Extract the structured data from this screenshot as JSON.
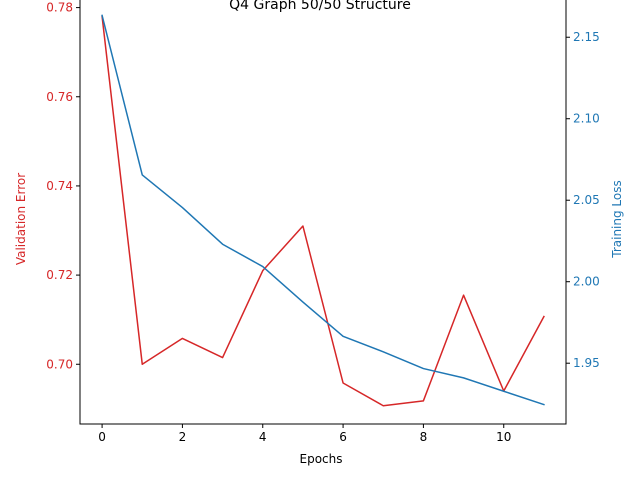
{
  "chart_data": {
    "type": "line",
    "title": "Q4 Graph 50/50 Structure",
    "xlabel": "Epochs",
    "x": [
      0,
      1,
      2,
      3,
      4,
      5,
      6,
      7,
      8,
      9,
      10,
      11
    ],
    "xlim": [
      -0.55,
      11.55
    ],
    "xticks": [
      0,
      2,
      4,
      6,
      8,
      10
    ],
    "axes": {
      "left": {
        "label": "Validation Error",
        "color": "#d62728",
        "ylim": [
          0.6866,
          0.7826
        ],
        "ticks": [
          "0.70",
          "0.72",
          "0.74",
          "0.76",
          "0.78"
        ]
      },
      "right": {
        "label": "Training Loss",
        "color": "#1f77b4",
        "ylim": [
          1.9127,
          2.1753
        ],
        "ticks": [
          "1.95",
          "2.00",
          "2.05",
          "2.10",
          "2.15"
        ]
      }
    },
    "series": [
      {
        "axis": "left",
        "color": "#d62728",
        "values": [
          0.778,
          0.7,
          0.7058,
          0.7015,
          0.721,
          0.731,
          0.6958,
          0.6907,
          0.6918,
          0.7155,
          0.694,
          0.7107
        ]
      },
      {
        "axis": "right",
        "color": "#1f77b4",
        "values": [
          2.1634,
          2.0655,
          2.0455,
          2.023,
          2.0093,
          1.9875,
          1.9665,
          1.957,
          1.9467,
          1.941,
          1.9328,
          1.9246
        ]
      }
    ],
    "grid": false,
    "legend": "none"
  }
}
